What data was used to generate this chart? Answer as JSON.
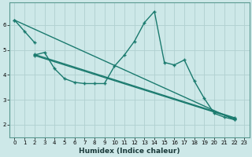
{
  "xlabel": "Humidex (Indice chaleur)",
  "xlim": [
    -0.5,
    23.5
  ],
  "ylim": [
    1.5,
    6.9
  ],
  "xticks": [
    0,
    1,
    2,
    3,
    4,
    5,
    6,
    7,
    8,
    9,
    10,
    11,
    12,
    13,
    14,
    15,
    16,
    17,
    18,
    19,
    20,
    21,
    22,
    23
  ],
  "yticks": [
    2,
    3,
    4,
    5,
    6
  ],
  "bg_color": "#cde8e8",
  "grid_color": "#b0d0d0",
  "line_color": "#1a7a6e",
  "line1": {
    "x": [
      0,
      1,
      2
    ],
    "y": [
      6.2,
      5.75,
      5.3
    ]
  },
  "line2": {
    "x": [
      2,
      3,
      4,
      5,
      6,
      7,
      8,
      9,
      10,
      11,
      12,
      13,
      14,
      15,
      16,
      17,
      18,
      19,
      20,
      21,
      22
    ],
    "y": [
      4.8,
      4.9,
      4.25,
      3.85,
      3.7,
      3.65,
      3.65,
      3.65,
      4.35,
      4.8,
      5.35,
      6.1,
      6.55,
      4.5,
      4.4,
      4.6,
      3.75,
      3.05,
      2.45,
      2.3,
      2.2
    ]
  },
  "line3": {
    "x": [
      0,
      22
    ],
    "y": [
      6.2,
      2.2
    ]
  },
  "line4": {
    "x": [
      2,
      22
    ],
    "y": [
      4.78,
      2.25
    ]
  },
  "line5": {
    "x": [
      2,
      22
    ],
    "y": [
      4.82,
      2.28
    ]
  }
}
